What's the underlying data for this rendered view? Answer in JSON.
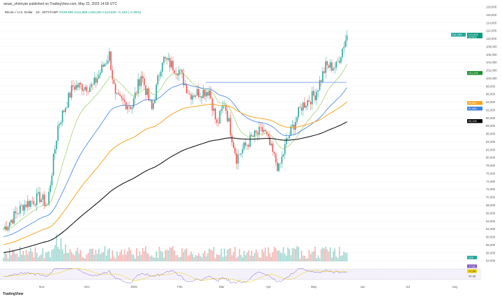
{
  "header": {
    "published": "aman_shirinyan published on TradingView.com, May 22, 2025 14:00 UTC",
    "symbol": "Bitcoin / U.S. Dollar · 1D · BITSTAMP",
    "ohlc": "O109,596 H111,888 L109,252 C110,825 +1,163 (+1.06%)"
  },
  "footer": {
    "brand": "TradingView"
  },
  "colors": {
    "up": "#26a69a",
    "down": "#ef5350",
    "ma20": "#8bc34a",
    "ma50": "#3d7fe0",
    "ma100": "#f5a623",
    "ma200": "#000000",
    "rsi": "#7e57c2",
    "rsiMa": "#f0d000",
    "resistance": "#5b8def"
  },
  "chart_data": {
    "type": "candlestick",
    "title": "Bitcoin / U.S. Dollar · 1D · BITSTAMP",
    "y_ticks": [
      "118,000",
      "116,000",
      "114,000",
      "112,000",
      "110,000",
      "108,000",
      "106,000",
      "104,000",
      "102,000",
      "100,000",
      "98,000",
      "96,000",
      "94,000",
      "92,000",
      "90,000",
      "88,000",
      "86,000",
      "84,000",
      "82,000",
      "80,000",
      "78,000",
      "76,000",
      "74,000",
      "72,000",
      "70,000",
      "68,000",
      "66,000",
      "64,000",
      "62,000",
      "60,000",
      "58,000",
      "56,000",
      "54,000"
    ],
    "x_ticks": [
      "Nov",
      "Dec",
      "2025",
      "Feb",
      "Mar",
      "Apr",
      "May",
      "Jun",
      "Jul",
      "Aug"
    ],
    "ylim": [
      54000,
      118000
    ],
    "close_keypoints_day_price": [
      [
        0,
        62
      ],
      [
        13,
        68
      ],
      [
        24,
        70
      ],
      [
        29,
        68
      ],
      [
        36,
        88
      ],
      [
        46,
        98
      ],
      [
        59,
        98
      ],
      [
        70,
        106
      ],
      [
        74,
        95
      ],
      [
        85,
        93
      ],
      [
        91,
        101
      ],
      [
        98,
        92
      ],
      [
        105,
        105
      ],
      [
        116,
        102
      ],
      [
        123,
        96
      ],
      [
        136,
        97
      ],
      [
        141,
        88
      ],
      [
        146,
        94
      ],
      [
        154,
        80
      ],
      [
        164,
        85
      ],
      [
        172,
        87
      ],
      [
        182,
        77
      ],
      [
        187,
        84
      ],
      [
        197,
        93
      ],
      [
        206,
        96
      ],
      [
        213,
        103
      ],
      [
        220,
        103
      ],
      [
        227,
        111
      ]
    ],
    "resistance_level": 99000,
    "price_labels": [
      {
        "label": "111,153",
        "sub": "",
        "color": "#26a69a"
      },
      {
        "label": "110,825",
        "sub": "09:56:03",
        "color": "#089981"
      },
      {
        "label": "101,253",
        "color": "#1b8c2a"
      },
      {
        "label": "92,557",
        "color": "#f5a623"
      },
      {
        "label": "91,480",
        "color": "#3d7fe0"
      },
      {
        "label": "89,106",
        "color": "#000000"
      }
    ],
    "volume_label": "223",
    "rsi": {
      "labels": [
        "77.82",
        "71.30",
        "40.38"
      ]
    }
  }
}
